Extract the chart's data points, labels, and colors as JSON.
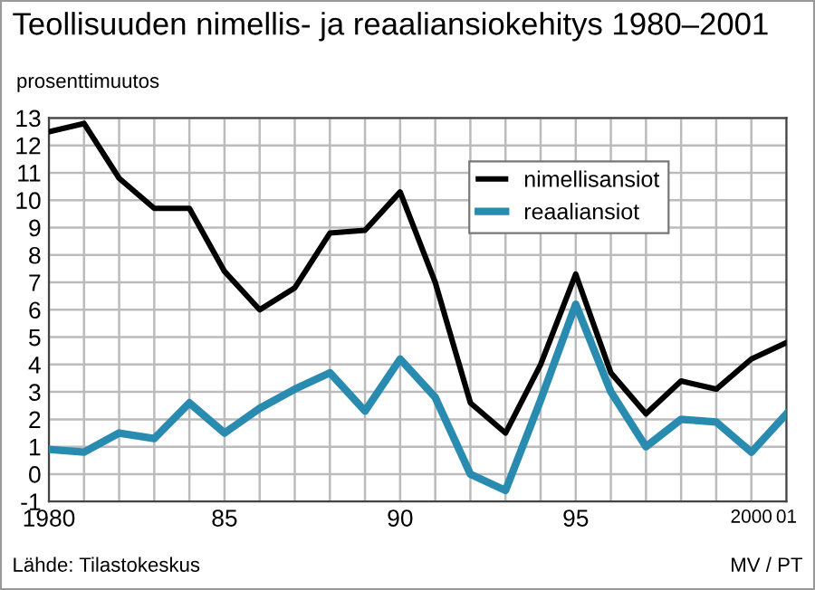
{
  "chart_data": {
    "type": "line",
    "title": "Teollisuuden nimellis- ja reaaliansiokehitys 1980–2001",
    "ylabel": "prosenttimuutos",
    "x": [
      1980,
      1981,
      1982,
      1983,
      1984,
      1985,
      1986,
      1987,
      1988,
      1989,
      1990,
      1991,
      1992,
      1993,
      1994,
      1995,
      1996,
      1997,
      1998,
      1999,
      2000,
      2001
    ],
    "series": [
      {
        "name": "nimellisansiot",
        "color": "#000000",
        "values": [
          12.5,
          12.8,
          10.8,
          9.7,
          9.7,
          7.4,
          6.0,
          6.8,
          8.8,
          8.9,
          10.3,
          7.0,
          2.6,
          1.5,
          4.0,
          7.3,
          3.7,
          2.2,
          3.4,
          3.1,
          4.2,
          4.8
        ]
      },
      {
        "name": "reaaliansiot",
        "color": "#2a8bb0",
        "values": [
          0.9,
          0.8,
          1.5,
          1.3,
          2.6,
          1.5,
          2.4,
          3.1,
          3.7,
          2.3,
          4.2,
          2.8,
          0.0,
          -0.6,
          2.7,
          6.2,
          3.0,
          1.0,
          2.0,
          1.9,
          0.8,
          2.2
        ]
      }
    ],
    "xlim": [
      1980,
      2001
    ],
    "xticks": [
      1980,
      {
        "value": 1981,
        "label": null
      },
      {
        "value": 1982,
        "label": null
      },
      {
        "value": 1983,
        "label": null
      },
      {
        "value": 1984,
        "label": null
      },
      {
        "value": 1985,
        "label": "85"
      },
      {
        "value": 1986,
        "label": null
      },
      {
        "value": 1987,
        "label": null
      },
      {
        "value": 1988,
        "label": null
      },
      {
        "value": 1989,
        "label": null
      },
      {
        "value": 1990,
        "label": "90"
      },
      {
        "value": 1991,
        "label": null
      },
      {
        "value": 1992,
        "label": null
      },
      {
        "value": 1993,
        "label": null
      },
      {
        "value": 1994,
        "label": null
      },
      {
        "value": 1995,
        "label": "95"
      },
      {
        "value": 1996,
        "label": null
      },
      {
        "value": 1997,
        "label": null
      },
      {
        "value": 1998,
        "label": null
      },
      {
        "value": 1999,
        "label": null
      },
      2000,
      {
        "value": 2001,
        "label": "01"
      }
    ],
    "ylim": [
      -1,
      13
    ],
    "yticks": [
      -1,
      0,
      1,
      2,
      3,
      4,
      5,
      6,
      7,
      8,
      9,
      10,
      11,
      12,
      13
    ],
    "grid": true,
    "legend": "top right",
    "line_style": "solid",
    "marker": "none",
    "annotations": [
      "Lähde: Tilastokeskus",
      "MV / PT"
    ]
  }
}
